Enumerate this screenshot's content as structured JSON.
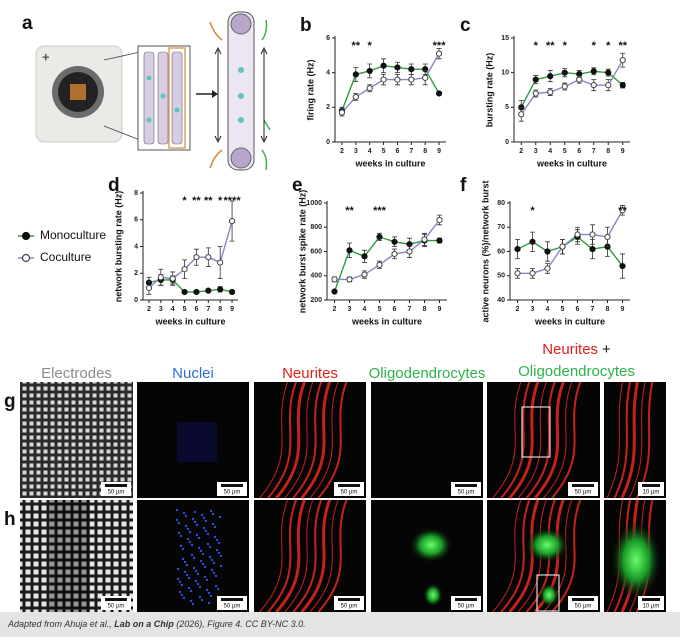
{
  "panel_a": {
    "label": "a",
    "plus": "+"
  },
  "legend": [
    {
      "name": "Monoculture",
      "color": "#2e9e3a"
    },
    {
      "name": "Coculture",
      "color": "#8a84c8"
    }
  ],
  "chart_data": [
    {
      "type": "line",
      "panel": "b",
      "ylabel": "firing rate (Hz)",
      "xlabel": "weeks in culture",
      "x": [
        2,
        3,
        4,
        5,
        6,
        7,
        8,
        9
      ],
      "xlim": [
        1.5,
        9.5
      ],
      "xticks": [
        2,
        3,
        4,
        5,
        6,
        7,
        8,
        9
      ],
      "ylim": [
        0,
        6
      ],
      "yticks": [
        0,
        2,
        4,
        6
      ],
      "series": [
        {
          "values": [
            1.8,
            3.9,
            4.1,
            4.4,
            4.3,
            4.2,
            4.2,
            2.8
          ],
          "errors": [
            0.2,
            0.4,
            0.4,
            0.4,
            0.3,
            0.3,
            0.3,
            0.1
          ]
        },
        {
          "values": [
            1.7,
            2.6,
            3.1,
            3.6,
            3.6,
            3.6,
            3.7,
            5.1
          ],
          "errors": [
            0.2,
            0.2,
            0.2,
            0.3,
            0.3,
            0.3,
            0.4,
            0.3
          ]
        }
      ],
      "significance": [
        null,
        "**",
        "*",
        null,
        null,
        null,
        null,
        "***"
      ]
    },
    {
      "type": "line",
      "panel": "c",
      "ylabel": "bursting rate (Hz)",
      "xlabel": "weeks in culture",
      "x": [
        2,
        3,
        4,
        5,
        6,
        7,
        8,
        9
      ],
      "xlim": [
        1.5,
        9.5
      ],
      "xticks": [
        2,
        3,
        4,
        5,
        6,
        7,
        8,
        9
      ],
      "ylim": [
        0,
        15
      ],
      "yticks": [
        0,
        5,
        10,
        15
      ],
      "series": [
        {
          "values": [
            5,
            9,
            9.5,
            10,
            9.8,
            10.2,
            10,
            8.2
          ],
          "errors": [
            1,
            0.6,
            0.8,
            0.6,
            0.5,
            0.5,
            0.5,
            0.4
          ]
        },
        {
          "values": [
            4,
            7,
            7.2,
            8,
            9,
            8.2,
            8.2,
            11.8
          ],
          "errors": [
            1,
            0.5,
            0.5,
            0.5,
            0.5,
            0.8,
            0.8,
            1
          ]
        }
      ],
      "significance": [
        null,
        "*",
        "**",
        "*",
        null,
        "*",
        "*",
        "**"
      ]
    },
    {
      "type": "line",
      "panel": "d",
      "ylabel": "network bursting rate (Hz)",
      "xlabel": "weeks in culture",
      "x": [
        2,
        3,
        4,
        5,
        6,
        7,
        8,
        9
      ],
      "xlim": [
        1.5,
        9.5
      ],
      "xticks": [
        2,
        3,
        4,
        5,
        6,
        7,
        8,
        9
      ],
      "ylim": [
        0,
        8
      ],
      "yticks": [
        0,
        2,
        4,
        6,
        8
      ],
      "series": [
        {
          "values": [
            1.3,
            1.5,
            1.5,
            0.6,
            0.6,
            0.7,
            0.8,
            0.6
          ],
          "errors": [
            0.4,
            0.4,
            0.3,
            0.1,
            0.1,
            0.1,
            0.2,
            0.1
          ]
        },
        {
          "values": [
            0.9,
            1.7,
            1.6,
            2.3,
            3.2,
            3.2,
            2.8,
            5.9
          ],
          "errors": [
            0.5,
            0.6,
            0.5,
            0.7,
            0.6,
            0.7,
            1.2,
            1.5
          ]
        }
      ],
      "significance": [
        null,
        null,
        null,
        "*",
        "**",
        "**",
        "*",
        "****"
      ]
    },
    {
      "type": "line",
      "panel": "e",
      "ylabel": "network burst spike rate (Hz)",
      "xlabel": "weeks in culture",
      "x": [
        2,
        3,
        4,
        5,
        6,
        7,
        8,
        9
      ],
      "xlim": [
        1.5,
        9.5
      ],
      "xticks": [
        2,
        3,
        4,
        5,
        6,
        7,
        8,
        9
      ],
      "ylim": [
        200,
        1000
      ],
      "yticks": [
        200,
        400,
        600,
        800,
        1000
      ],
      "series": [
        {
          "values": [
            270,
            610,
            560,
            720,
            680,
            660,
            690,
            690
          ],
          "errors": [
            10,
            60,
            50,
            30,
            40,
            50,
            50,
            20
          ]
        },
        {
          "values": [
            370,
            370,
            410,
            490,
            580,
            600,
            700,
            860
          ],
          "errors": [
            20,
            20,
            30,
            30,
            40,
            50,
            50,
            40
          ]
        }
      ],
      "significance": [
        null,
        "**",
        null,
        "***",
        null,
        null,
        null,
        null
      ]
    },
    {
      "type": "line",
      "panel": "f",
      "ylabel": "active neurons (%)/network burst",
      "xlabel": "weeks in culture",
      "x": [
        2,
        3,
        4,
        5,
        6,
        7,
        8,
        9
      ],
      "xlim": [
        1.5,
        9.5
      ],
      "xticks": [
        2,
        3,
        4,
        5,
        6,
        7,
        8,
        9
      ],
      "ylim": [
        40,
        80
      ],
      "yticks": [
        40,
        50,
        60,
        70,
        80
      ],
      "series": [
        {
          "values": [
            61,
            64,
            60,
            62,
            66,
            61,
            62,
            54
          ],
          "errors": [
            4,
            4,
            4,
            3,
            3,
            4,
            4,
            5
          ]
        },
        {
          "values": [
            51,
            51,
            53,
            62,
            67,
            67,
            66,
            77
          ],
          "errors": [
            2,
            2,
            2,
            3,
            3,
            4,
            4,
            2
          ]
        }
      ],
      "significance": [
        null,
        "*",
        null,
        null,
        null,
        null,
        null,
        "**"
      ]
    }
  ],
  "microscopy": {
    "columns": [
      {
        "title": "Electrodes",
        "color": "#8c8c8c"
      },
      {
        "title": "Nuclei",
        "color": "#2f6fd0"
      },
      {
        "title": "Neurites",
        "color": "#e0201b"
      },
      {
        "title": "Oligodendrocytes",
        "color": "#2db24a"
      }
    ],
    "merged_header": {
      "first": "Neurites",
      "join": "+",
      "second": "Oligodendrocytes"
    },
    "rows": [
      {
        "label": "g",
        "scale_bars": [
          "50 µm",
          "50 µm",
          "50 µm",
          "50 µm",
          "50 µm",
          "10 µm"
        ]
      },
      {
        "label": "h",
        "scale_bars": [
          "50 µm",
          "50 µm",
          "50 µm",
          "50 µm",
          "50 µm",
          "10 µm"
        ]
      }
    ]
  },
  "caption": {
    "before": "Adapted from Ahuja et al., ",
    "journal": "Lab on a Chip",
    "after": " (2026), Figure 4. CC BY-NC 3.0."
  }
}
